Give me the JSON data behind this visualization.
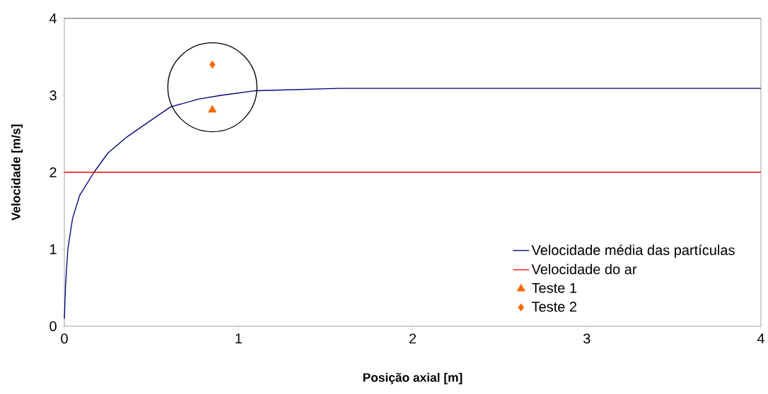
{
  "chart_data": {
    "type": "line",
    "xlabel": "Posição axial [m]",
    "ylabel": "Velocidade [m/s]",
    "xlim": [
      0,
      4
    ],
    "ylim": [
      0,
      4
    ],
    "xticks": [
      0,
      1,
      2,
      3,
      4
    ],
    "yticks": [
      0,
      1,
      2,
      3,
      4
    ],
    "grid": false,
    "legend": "bottom right",
    "series": [
      {
        "name": "Velocidade média das partículas",
        "color": "#000080",
        "x": [
          0,
          0.007,
          0.02,
          0.047,
          0.088,
          0.17,
          0.25,
          0.36,
          0.5,
          0.61,
          0.77,
          0.9,
          1.1,
          1.58,
          2.5,
          4
        ],
        "values": [
          0.1,
          0.54,
          1.0,
          1.4,
          1.7,
          2.0,
          2.25,
          2.46,
          2.68,
          2.85,
          2.95,
          3.0,
          3.06,
          3.09,
          3.09,
          3.09
        ]
      },
      {
        "name": "Velocidade do ar",
        "color": "#ff0000",
        "x": [
          0,
          4
        ],
        "values": [
          2,
          2
        ]
      },
      {
        "name": "Teste 1",
        "type": "scatter",
        "marker": "triangle",
        "color": "#ff6600",
        "x": [
          0.85
        ],
        "values": [
          2.81
        ]
      },
      {
        "name": "Teste 2",
        "type": "scatter",
        "marker": "diamond",
        "color": "#ff6600",
        "x": [
          0.85
        ],
        "values": [
          3.4
        ]
      }
    ]
  }
}
